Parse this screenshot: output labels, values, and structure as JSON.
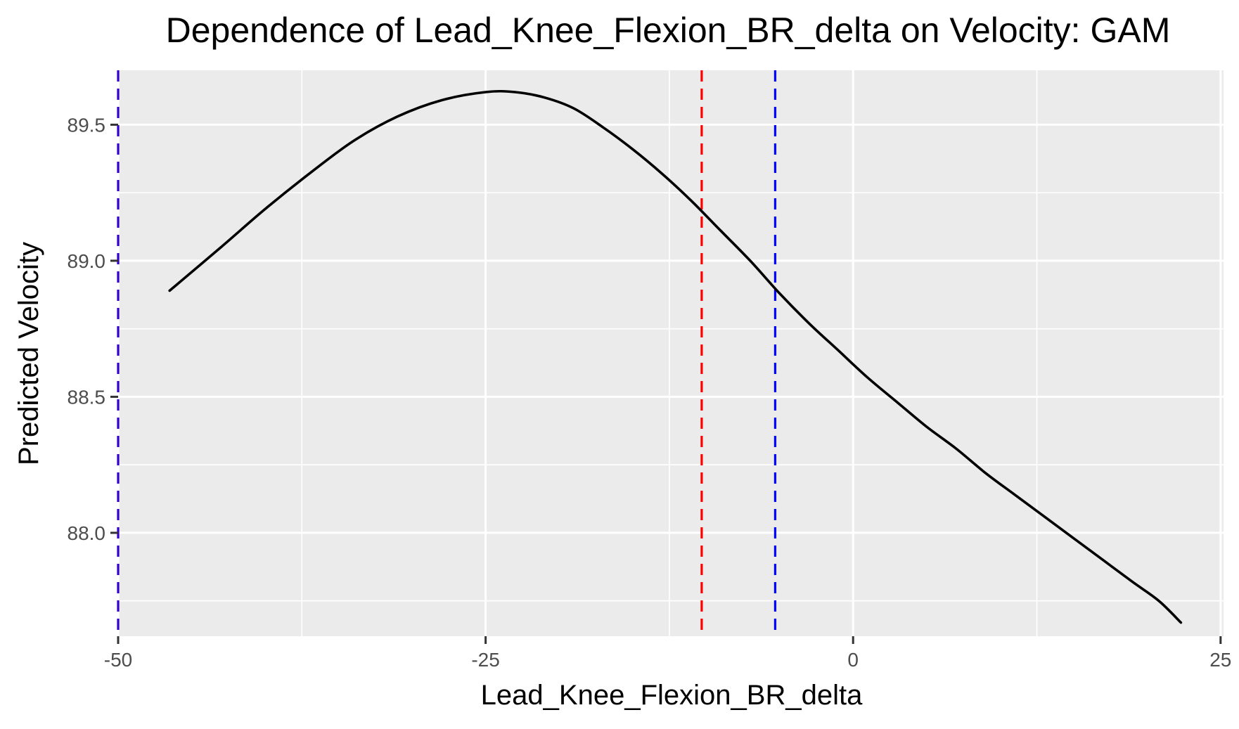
{
  "chart_data": {
    "type": "line",
    "title": "Dependence of Lead_Knee_Flexion_BR_delta on Velocity: GAM",
    "xlabel": "Lead_Knee_Flexion_BR_delta",
    "ylabel": "Predicted Velocity",
    "xlim": [
      -50,
      25.2
    ],
    "ylim": [
      87.62,
      89.7
    ],
    "x_ticks": [
      -50,
      -25,
      0,
      25
    ],
    "x_tick_labels": [
      "-50",
      "-25",
      "0",
      "25"
    ],
    "y_ticks": [
      88.0,
      88.5,
      89.0,
      89.5
    ],
    "y_tick_labels": [
      "88.0",
      "88.5",
      "89.0",
      "89.5"
    ],
    "grid": true,
    "background": "#ebebeb",
    "series": [
      {
        "color": "#000000",
        "x": [
          -46.5,
          -43,
          -40,
          -37,
          -34,
          -31,
          -28,
          -25,
          -23,
          -21,
          -19,
          -17,
          -15,
          -13,
          -11,
          -9,
          -7,
          -5,
          -3,
          -1,
          1,
          3,
          5,
          7,
          9,
          11,
          13,
          15,
          17,
          19,
          20.8,
          22.3
        ],
        "y": [
          88.89,
          89.05,
          89.19,
          89.32,
          89.44,
          89.53,
          89.59,
          89.62,
          89.62,
          89.6,
          89.56,
          89.49,
          89.41,
          89.32,
          89.22,
          89.11,
          89.0,
          88.88,
          88.77,
          88.67,
          88.57,
          88.48,
          88.39,
          88.31,
          88.22,
          88.14,
          88.06,
          87.98,
          87.9,
          87.82,
          87.75,
          87.67
        ]
      }
    ],
    "vlines": [
      {
        "x": -50,
        "color": "#3300cc"
      },
      {
        "x": -10.3,
        "color": "#ff0000"
      },
      {
        "x": -5.3,
        "color": "#0000ff"
      }
    ]
  }
}
